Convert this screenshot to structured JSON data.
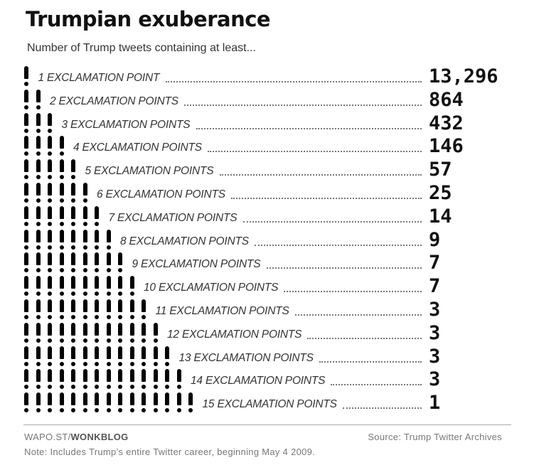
{
  "title": "Trumpian exuberance",
  "subtitle": "Number of Trump tweets containing at least...",
  "footer": {
    "credit_prefix": "WAPO.ST/",
    "credit_brand": "WONKBLOG",
    "source": "Source: Trump Twitter Archives",
    "note": "Note: Includes Trump’s entire Twitter career, beginning May 4 2009."
  },
  "chart_data": {
    "type": "table",
    "title": "Trumpian exuberance",
    "subtitle": "Number of Trump tweets containing at least...",
    "rows": [
      {
        "label": "1 EXCLAMATION POINT",
        "exclamations": 1,
        "value": "13,296"
      },
      {
        "label": "2 EXCLAMATION POINTS",
        "exclamations": 2,
        "value": "864"
      },
      {
        "label": "3 EXCLAMATION POINTS",
        "exclamations": 3,
        "value": "432"
      },
      {
        "label": "4 EXCLAMATION POINTS",
        "exclamations": 4,
        "value": "146"
      },
      {
        "label": "5 EXCLAMATION POINTS",
        "exclamations": 5,
        "value": "57"
      },
      {
        "label": "6 EXCLAMATION POINTS",
        "exclamations": 6,
        "value": "25"
      },
      {
        "label": "7 EXCLAMATION POINTS",
        "exclamations": 7,
        "value": "14"
      },
      {
        "label": "8 EXCLAMATION POINTS",
        "exclamations": 8,
        "value": "9"
      },
      {
        "label": "9 EXCLAMATION POINTS",
        "exclamations": 9,
        "value": "7"
      },
      {
        "label": "10 EXCLAMATION POINTS",
        "exclamations": 10,
        "value": "7"
      },
      {
        "label": "11 EXCLAMATION POINTS",
        "exclamations": 11,
        "value": "3"
      },
      {
        "label": "12 EXCLAMATION POINTS",
        "exclamations": 12,
        "value": "3"
      },
      {
        "label": "13 EXCLAMATION POINTS",
        "exclamations": 13,
        "value": "3"
      },
      {
        "label": "14 EXCLAMATION POINTS",
        "exclamations": 14,
        "value": "3"
      },
      {
        "label": "15 EXCLAMATION POINTS",
        "exclamations": 15,
        "value": "1"
      }
    ]
  }
}
